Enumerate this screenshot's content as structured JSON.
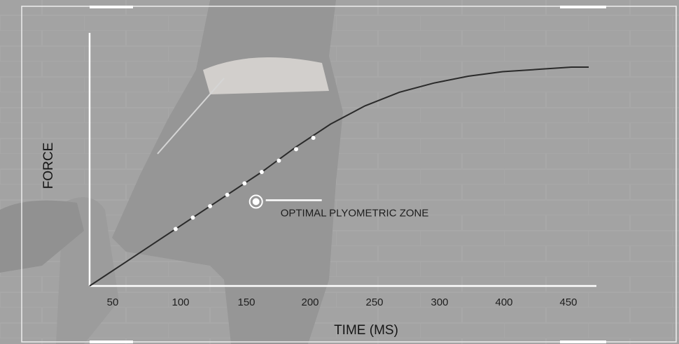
{
  "chart_data": {
    "type": "line",
    "title": "",
    "xlabel": "TIME (MS)",
    "ylabel": "FORCE",
    "xlim": [
      30,
      475
    ],
    "ylim": [
      0,
      100
    ],
    "x_ticks": [
      50,
      100,
      150,
      200,
      250,
      300,
      400,
      450
    ],
    "x_tick_labels": [
      "50",
      "100",
      "150",
      "200",
      "250",
      "300",
      "400",
      "450"
    ],
    "series": [
      {
        "x": [
          30,
          60,
          90,
          120,
          150,
          180,
          210,
          240,
          270,
          300,
          330,
          360,
          390,
          420,
          450,
          465
        ],
        "y": [
          0,
          10,
          20,
          30,
          40,
          50,
          61,
          71,
          79,
          85,
          89,
          92,
          94,
          95,
          96,
          96
        ]
      }
    ],
    "highlighted_points": {
      "x": [
        105,
        120,
        135,
        150,
        165,
        180,
        195,
        210,
        225
      ],
      "y": [
        25,
        30,
        35,
        40,
        45,
        50,
        55,
        60,
        65
      ]
    },
    "annotation": {
      "text": "OPTIMAL PLYOMETRIC ZONE",
      "x": 175,
      "y": 37
    },
    "grid": false,
    "legend": "none",
    "colors": {
      "line": "#2a2a2a",
      "axis": "#ffffff",
      "points": "#ffffff",
      "text": "#1e1e1e",
      "overlay": "#c8c8c8"
    }
  }
}
